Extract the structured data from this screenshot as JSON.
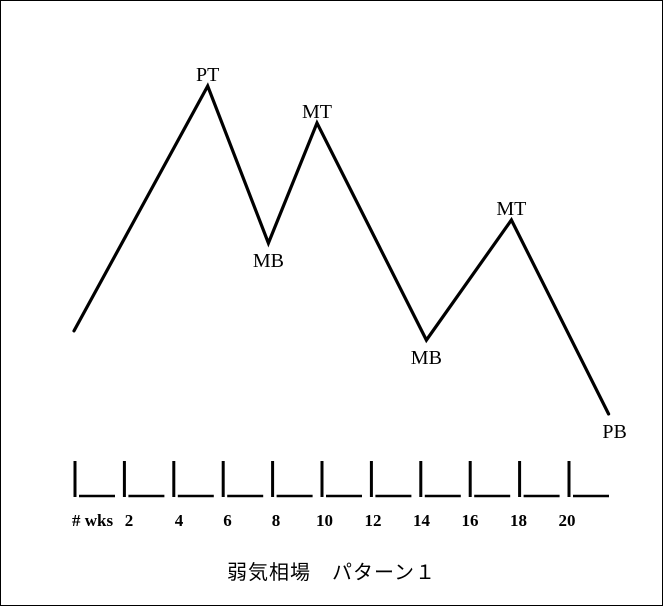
{
  "colors": {
    "line": "#000000",
    "background": "#ffffff"
  },
  "path_points": [
    {
      "week": 0,
      "price": 0.47,
      "label": ""
    },
    {
      "week": 5.5,
      "price": 1.0,
      "label": "PT"
    },
    {
      "week": 8,
      "price": 0.66,
      "label": "MB"
    },
    {
      "week": 10,
      "price": 0.92,
      "label": "MT"
    },
    {
      "week": 14.5,
      "price": 0.45,
      "label": "MB"
    },
    {
      "week": 18,
      "price": 0.71,
      "label": "MT"
    },
    {
      "week": 22,
      "price": 0.29,
      "label": "PB"
    }
  ],
  "axis": {
    "prefix": "# wks",
    "ticks": [
      "2",
      "4",
      "6",
      "8",
      "10",
      "12",
      "14",
      "16",
      "18",
      "20"
    ]
  },
  "caption": "弱気相場　パターン１"
}
